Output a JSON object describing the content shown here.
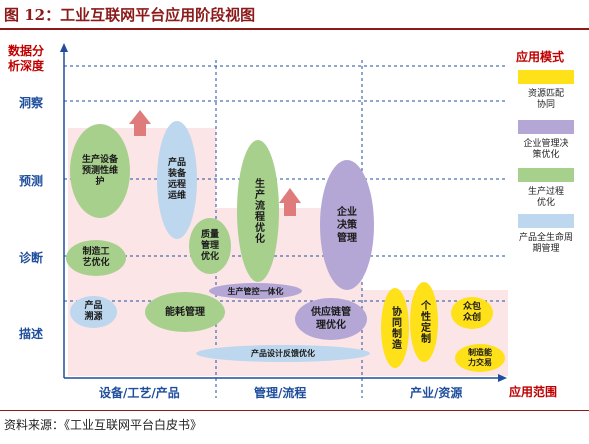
{
  "title": "图 12：工业互联网平台应用阶段视图",
  "source": "资料来源：《工业互联网平台白皮书》",
  "y_axis": {
    "name_line1": "数据分",
    "name_line2": "析深度",
    "levels": [
      "洞察",
      "预测",
      "诊断",
      "描述"
    ]
  },
  "x_axis": {
    "name": "应用范围",
    "groups": [
      "设备/工艺/产品",
      "管理/流程",
      "产业/资源"
    ]
  },
  "legend": {
    "title": "应用模式",
    "items": [
      {
        "label": "资源匹配协同",
        "color": "#ffe11a"
      },
      {
        "label": "企业管理决策优化",
        "color": "#b4a7d6"
      },
      {
        "label": "生产过程优化",
        "color": "#a8d08d"
      },
      {
        "label": "产品全生命周期管理",
        "color": "#bdd7ee"
      }
    ]
  },
  "applications": {
    "predictive_maintenance": "生产设备预测性维护",
    "remote_ops": "产品装备远程运维",
    "process_opt": "制造工艺优化",
    "quality_opt": "质量管理优化",
    "production_flow": "生产流程优化",
    "enterprise_decision": "企业决策管理",
    "control_integration": "生产管控一体化",
    "product_trace": "产品溯源",
    "energy_mgmt": "能耗管理",
    "supply_chain": "供应链管理优化",
    "feedback_opt": "产品设计反馈优化",
    "collab_mfg": "协同制造",
    "customization": "个性定制",
    "crowdsourcing": "众包众创",
    "capacity_trade": "制造能力交易"
  }
}
